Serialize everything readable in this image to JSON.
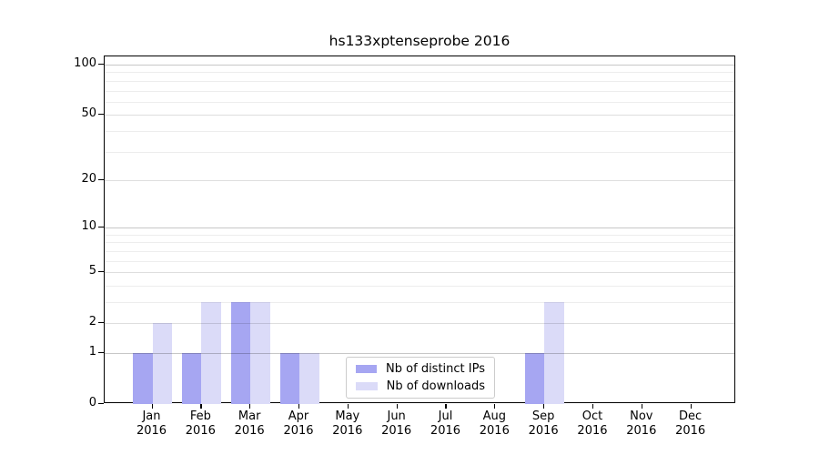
{
  "chart_data": {
    "type": "bar",
    "title": "hs133xptenseprobe 2016",
    "year_label": "2016",
    "categories": [
      "Jan",
      "Feb",
      "Mar",
      "Apr",
      "May",
      "Jun",
      "Jul",
      "Aug",
      "Sep",
      "Oct",
      "Nov",
      "Dec"
    ],
    "series": [
      {
        "name": "Nb of distinct IPs",
        "color": "#a6a6f2",
        "values": [
          1,
          1,
          3,
          1,
          0,
          0,
          0,
          0,
          1,
          0,
          0,
          0
        ]
      },
      {
        "name": "Nb of downloads",
        "color": "#dbdbf8",
        "values": [
          2,
          3,
          3,
          1,
          0,
          0,
          0,
          0,
          3,
          0,
          0,
          0
        ]
      }
    ],
    "xlabel": "",
    "ylabel": "",
    "y_scale": "log1p",
    "ylim": [
      0,
      100
    ],
    "y_ticks": [
      0,
      1,
      2,
      5,
      10,
      20,
      50,
      100
    ],
    "grid_values": [
      1,
      2,
      3,
      4,
      5,
      6,
      7,
      8,
      9,
      10,
      20,
      30,
      40,
      50,
      60,
      70,
      80,
      90,
      100
    ],
    "grid_decade_values": [
      1,
      10,
      100
    ],
    "grid_on": true,
    "legend_position": "inside lower center-left",
    "colors": {
      "axis": "#000000",
      "grid_decade": "rgba(0,0,0,0.22)",
      "grid_labeled": "rgba(0,0,0,0.13)",
      "grid_minor": "rgba(0,0,0,0.07)"
    }
  }
}
